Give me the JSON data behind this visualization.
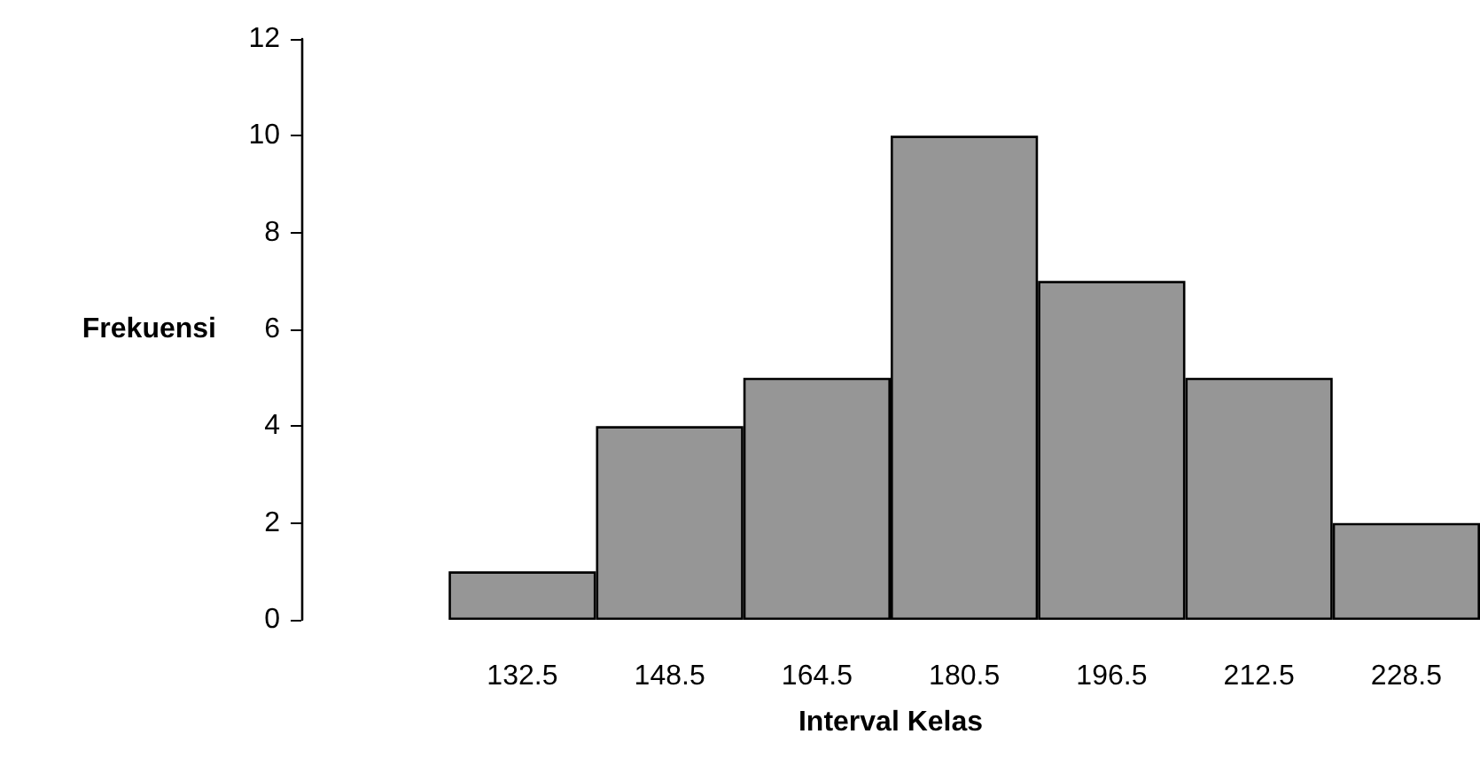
{
  "chart_data": {
    "type": "bar",
    "xlabel": "Interval Kelas",
    "ylabel": "Frekuensi",
    "categories": [
      null,
      "132.5",
      "148.5",
      "164.5",
      "180.5",
      "196.5",
      "212.5",
      "228.5"
    ],
    "values": [
      null,
      1,
      4,
      5,
      10,
      7,
      5,
      2
    ],
    "color": "#969696",
    "ylim": [
      0,
      12
    ],
    "yticks": [
      0,
      2,
      4,
      6,
      8,
      10,
      12
    ],
    "grid": false
  }
}
